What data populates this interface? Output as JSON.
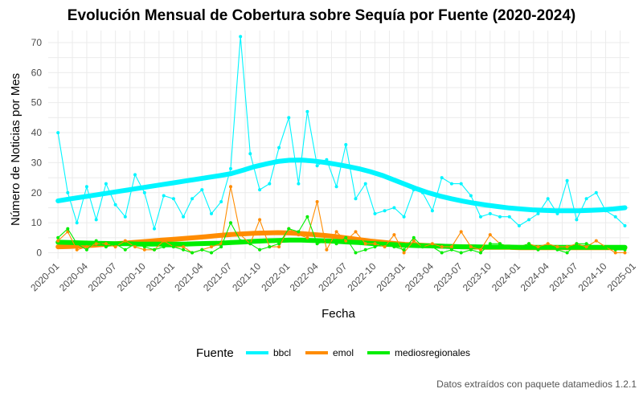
{
  "chart_data": {
    "type": "line",
    "title": "Evolución Mensual de Cobertura sobre Sequía por Fuente (2020-2024)",
    "xlabel": "Fecha",
    "ylabel": "Número de Noticias por Mes",
    "caption": "Datos extraídos con paquete datamedios 1.2.1",
    "legend_title": "Fuente",
    "legend_position": "bottom",
    "grid": true,
    "xlim": [
      "2019-12-01",
      "2024-12-15"
    ],
    "ylim": [
      -2,
      74
    ],
    "y_ticks": [
      0,
      10,
      20,
      30,
      40,
      50,
      60,
      70
    ],
    "x_ticks": [
      "2020-01",
      "2020-04",
      "2020-07",
      "2020-10",
      "2021-01",
      "2021-04",
      "2021-07",
      "2021-10",
      "2022-01",
      "2022-04",
      "2022-07",
      "2022-10",
      "2023-01",
      "2023-04",
      "2023-07",
      "2023-10",
      "2024-01",
      "2024-04",
      "2024-07",
      "2024-10",
      "2025-01"
    ],
    "x": [
      "2020-01",
      "2020-02",
      "2020-03",
      "2020-04",
      "2020-05",
      "2020-06",
      "2020-07",
      "2020-08",
      "2020-09",
      "2020-10",
      "2020-11",
      "2020-12",
      "2021-01",
      "2021-02",
      "2021-03",
      "2021-04",
      "2021-05",
      "2021-06",
      "2021-07",
      "2021-08",
      "2021-09",
      "2021-10",
      "2021-11",
      "2021-12",
      "2022-01",
      "2022-02",
      "2022-03",
      "2022-04",
      "2022-05",
      "2022-06",
      "2022-07",
      "2022-08",
      "2022-09",
      "2022-10",
      "2022-11",
      "2022-12",
      "2023-01",
      "2023-02",
      "2023-03",
      "2023-04",
      "2023-05",
      "2023-06",
      "2023-07",
      "2023-08",
      "2023-09",
      "2023-10",
      "2023-11",
      "2023-12",
      "2024-01",
      "2024-02",
      "2024-03",
      "2024-04",
      "2024-05",
      "2024-06",
      "2024-07",
      "2024-08",
      "2024-09",
      "2024-10",
      "2024-11",
      "2024-12"
    ],
    "series": [
      {
        "name": "bbcl",
        "color": "#00f5ff",
        "values": [
          40,
          20,
          10,
          22,
          11,
          23,
          16,
          12,
          26,
          20,
          8,
          19,
          18,
          12,
          18,
          21,
          13,
          17,
          28,
          72,
          33,
          21,
          23,
          35,
          45,
          23,
          47,
          29,
          31,
          22,
          36,
          18,
          23,
          13,
          14,
          15,
          12,
          21,
          20,
          14,
          25,
          23,
          23,
          19,
          12,
          13,
          12,
          12,
          9,
          11,
          13,
          18,
          13,
          24,
          11,
          18,
          20,
          14,
          12,
          9
        ],
        "trend": [
          17.3,
          17.9,
          18.5,
          19.1,
          19.7,
          20.3,
          20.9,
          21.5,
          22.1,
          22.7,
          23.3,
          23.9,
          24.5,
          25.1,
          25.7,
          26.4,
          27.5,
          28.7,
          29.6,
          30.4,
          30.8,
          30.9,
          30.6,
          30.1,
          29.5,
          28.8,
          28.0,
          27.0,
          25.8,
          24.3,
          22.8,
          21.3,
          20.0,
          18.9,
          18.0,
          17.2,
          16.5,
          15.9,
          15.4,
          14.9,
          14.6,
          14.3,
          14.1,
          14.0,
          14.0,
          14.0,
          14.1,
          14.3,
          14.6,
          15.0
        ]
      },
      {
        "name": "emol",
        "color": "#ff8c00",
        "values": [
          4,
          7,
          1,
          2,
          3,
          3,
          2,
          4,
          2,
          1,
          1,
          4,
          2,
          2,
          0,
          1,
          2,
          3,
          22,
          6,
          3,
          11,
          2,
          2,
          8,
          6,
          5,
          17,
          1,
          7,
          4,
          7,
          3,
          3,
          2,
          6,
          0,
          4,
          2,
          3,
          2,
          2,
          7,
          2,
          1,
          6,
          3,
          2,
          2,
          3,
          2,
          3,
          2,
          2,
          3,
          2,
          4,
          2,
          0,
          0
        ],
        "trend": [
          2.0,
          2.1,
          2.3,
          2.5,
          2.8,
          3.0,
          3.3,
          3.6,
          3.9,
          4.2,
          4.5,
          4.8,
          5.1,
          5.4,
          5.8,
          6.1,
          6.3,
          6.5,
          6.6,
          6.7,
          6.6,
          6.4,
          6.1,
          5.8,
          5.4,
          4.9,
          4.4,
          3.9,
          3.5,
          3.1,
          2.8,
          2.6,
          2.4,
          2.2,
          2.1,
          2.0,
          1.9,
          1.8,
          1.8,
          1.8,
          1.7,
          1.7,
          1.7,
          1.7,
          1.7,
          1.7,
          1.7,
          1.7,
          1.7,
          1.7
        ]
      },
      {
        "name": "mediosregionales",
        "color": "#00ee00",
        "values": [
          5,
          8,
          3,
          1,
          4,
          2,
          3,
          1,
          3,
          2,
          1,
          2,
          2,
          1,
          0,
          1,
          0,
          2,
          10,
          4,
          3,
          1,
          2,
          3,
          8,
          7,
          12,
          3,
          4,
          3,
          5,
          0,
          1,
          2,
          3,
          2,
          1,
          5,
          2,
          2,
          0,
          1,
          0,
          1,
          0,
          3,
          3,
          2,
          2,
          3,
          1,
          2,
          1,
          0,
          3,
          3,
          2,
          2,
          1,
          1
        ],
        "trend": [
          3.5,
          3.4,
          3.3,
          3.2,
          3.1,
          3.0,
          3.0,
          2.9,
          2.9,
          2.9,
          2.9,
          2.9,
          3.0,
          3.1,
          3.2,
          3.4,
          3.6,
          3.8,
          4.0,
          4.1,
          4.2,
          4.2,
          4.1,
          4.0,
          3.8,
          3.6,
          3.4,
          3.1,
          2.9,
          2.7,
          2.5,
          2.4,
          2.3,
          2.2,
          2.1,
          2.0,
          2.0,
          1.9,
          1.9,
          1.9,
          1.8,
          1.8,
          1.8,
          1.8,
          1.8,
          1.8,
          1.8,
          1.8,
          1.8,
          1.8
        ]
      }
    ]
  }
}
